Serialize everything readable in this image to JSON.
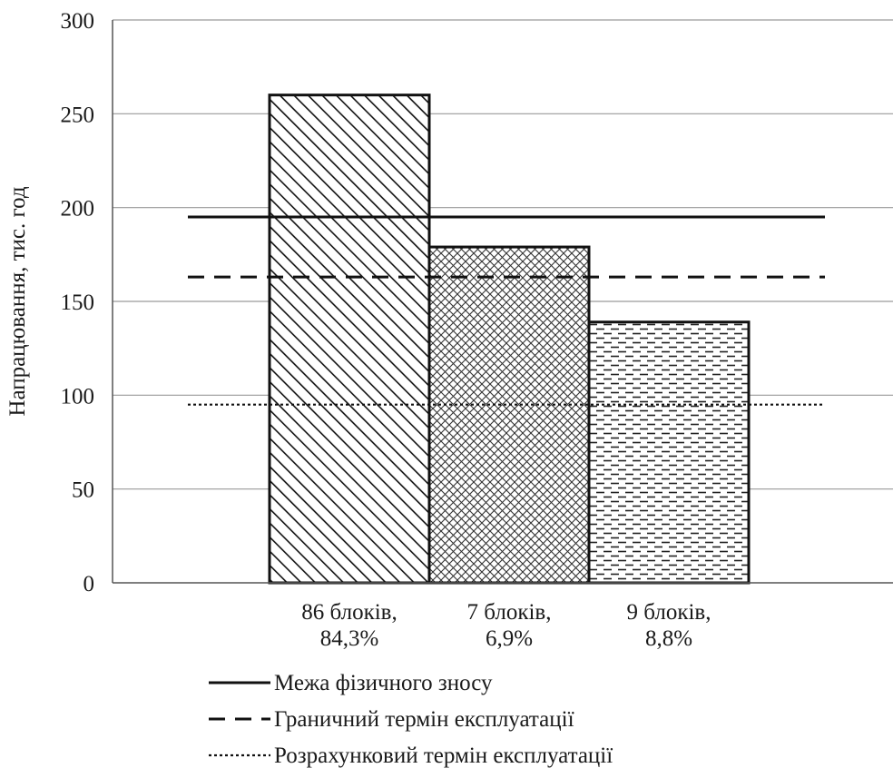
{
  "chart_data": {
    "type": "bar",
    "ylabel": "Напрацювання, тис. год",
    "xlabel": "",
    "ylim": [
      0,
      300
    ],
    "yticks": [
      0,
      50,
      100,
      150,
      200,
      250,
      300
    ],
    "grid": true,
    "categories": [
      [
        "86 блоків,",
        "84,3%"
      ],
      [
        "7 блоків,",
        "6,9%"
      ],
      [
        "9 блоків,",
        "8,8%"
      ]
    ],
    "values": [
      260,
      179,
      139
    ],
    "bar_fill_patterns": [
      "diagonal-hatch",
      "crosshatch",
      "horizontal-dashes"
    ],
    "reference_lines": [
      {
        "name": "Межа фізичного зносу",
        "value": 195,
        "style": "solid"
      },
      {
        "name": "Граничний термін експлуатації",
        "value": 163,
        "style": "dashed"
      },
      {
        "name": "Розрахунковий термін експлуатації",
        "value": 95,
        "style": "dotted"
      }
    ],
    "legend_position": "bottom-center"
  }
}
